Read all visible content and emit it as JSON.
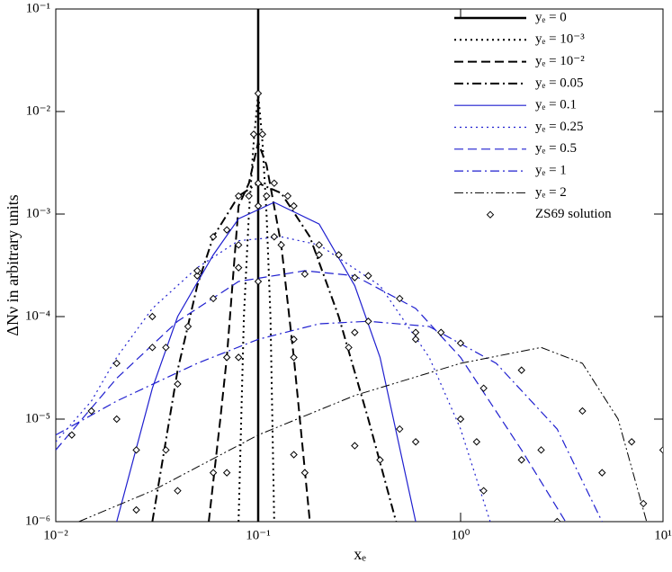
{
  "chart_data": {
    "type": "line",
    "x_label": "xₑ",
    "y_label": "ΔNν  in arbitrary units",
    "xscale": "log",
    "yscale": "log",
    "xlim": [
      0.01,
      10
    ],
    "ylim": [
      1e-06,
      0.1
    ],
    "xticks": [
      {
        "value": 0.01,
        "label": "10⁻²"
      },
      {
        "value": 0.1,
        "label": "10⁻¹"
      },
      {
        "value": 1,
        "label": "10⁰"
      },
      {
        "value": 10,
        "label": "10¹"
      }
    ],
    "yticks": [
      {
        "value": 1e-06,
        "label": "10⁻⁶"
      },
      {
        "value": 1e-05,
        "label": "10⁻⁵"
      },
      {
        "value": 0.0001,
        "label": "10⁻⁴"
      },
      {
        "value": 0.001,
        "label": "10⁻³"
      },
      {
        "value": 0.01,
        "label": "10⁻²"
      },
      {
        "value": 0.1,
        "label": "10⁻¹"
      }
    ],
    "legend": "upper right",
    "series": [
      {
        "name": "yₑ = 0",
        "color": "#000000",
        "style": "solid",
        "width": 2.5,
        "x": [
          0.1,
          0.1
        ],
        "values": [
          1e-06,
          0.1
        ]
      },
      {
        "name": "yₑ = 10⁻³",
        "color": "#000000",
        "style": "dotted",
        "width": 2,
        "x": [
          0.08,
          0.085,
          0.09,
          0.095,
          0.1,
          0.105,
          0.11,
          0.115,
          0.12
        ],
        "values": [
          1e-06,
          0.0001,
          0.001,
          0.005,
          0.015,
          0.005,
          0.001,
          0.0001,
          1e-06
        ]
      },
      {
        "name": "yₑ = 10⁻²",
        "color": "#000000",
        "style": "dashed",
        "width": 2,
        "x": [
          0.057,
          0.065,
          0.07,
          0.08,
          0.09,
          0.1,
          0.11,
          0.13,
          0.15,
          0.18
        ],
        "values": [
          1e-06,
          1e-05,
          4e-05,
          0.0012,
          0.002,
          0.005,
          0.003,
          0.0005,
          4e-05,
          1e-06
        ]
      },
      {
        "name": "yₑ = 0.05",
        "color": "#000000",
        "style": "dashdot",
        "width": 2,
        "x": [
          0.03,
          0.04,
          0.05,
          0.06,
          0.08,
          0.1,
          0.13,
          0.18,
          0.25,
          0.35,
          0.48
        ],
        "values": [
          1e-06,
          3e-05,
          0.0002,
          0.0006,
          0.0015,
          0.002,
          0.0016,
          0.0006,
          0.0001,
          1e-05,
          1e-06
        ]
      },
      {
        "name": "yₑ = 0.1",
        "color": "#1f1fcf",
        "style": "solid",
        "width": 1.2,
        "x": [
          0.02,
          0.03,
          0.04,
          0.06,
          0.08,
          0.12,
          0.2,
          0.3,
          0.4,
          0.6
        ],
        "values": [
          1e-06,
          2e-05,
          0.0001,
          0.0004,
          0.0009,
          0.0013,
          0.0008,
          0.0002,
          4e-05,
          1e-06
        ]
      },
      {
        "name": "yₑ = 0.25",
        "color": "#1f1fcf",
        "style": "dotted",
        "width": 1.2,
        "x": [
          0.01,
          0.015,
          0.02,
          0.03,
          0.05,
          0.08,
          0.13,
          0.2,
          0.4,
          0.7,
          1,
          1.4
        ],
        "values": [
          6e-06,
          1.5e-05,
          4e-05,
          0.00012,
          0.0003,
          0.00055,
          0.0006,
          0.0005,
          0.0002,
          4e-05,
          8e-06,
          1e-06
        ]
      },
      {
        "name": "yₑ = 0.5",
        "color": "#1f1fcf",
        "style": "dashed",
        "width": 1.2,
        "x": [
          0.01,
          0.02,
          0.04,
          0.08,
          0.17,
          0.3,
          0.6,
          1,
          2,
          3.3
        ],
        "values": [
          5e-06,
          2.5e-05,
          9e-05,
          0.00022,
          0.00028,
          0.00025,
          0.00012,
          4e-05,
          5e-06,
          1e-06
        ]
      },
      {
        "name": "yₑ = 1",
        "color": "#1f1fcf",
        "style": "dashdot",
        "width": 1.2,
        "x": [
          0.01,
          0.02,
          0.05,
          0.1,
          0.2,
          0.35,
          0.7,
          1.5,
          3,
          5
        ],
        "values": [
          7e-06,
          1.5e-05,
          3.5e-05,
          6e-05,
          8.5e-05,
          9e-05,
          8e-05,
          3.5e-05,
          8e-06,
          1e-06
        ]
      },
      {
        "name": "yₑ = 2",
        "color": "#000000",
        "style": "dashdotdot",
        "width": 1,
        "x": [
          0.013,
          0.03,
          0.1,
          0.3,
          1,
          2.5,
          4,
          6,
          8.3
        ],
        "values": [
          1e-06,
          2e-06,
          7e-06,
          1.7e-05,
          3.5e-05,
          5e-05,
          3.5e-05,
          1e-05,
          1e-06
        ]
      },
      {
        "name": "ZS69 solution",
        "color": "#000000",
        "marker": "diamond",
        "x": [
          0.095,
          0.1,
          0.105,
          0.09,
          0.11,
          0.06,
          0.07,
          0.08,
          0.12,
          0.13,
          0.15,
          0.17,
          0.035,
          0.045,
          0.06,
          0.08,
          0.1,
          0.14,
          0.2,
          0.28,
          0.4,
          0.025,
          0.035,
          0.05,
          0.07,
          0.1,
          0.15,
          0.25,
          0.35,
          0.5,
          0.012,
          0.02,
          0.03,
          0.05,
          0.08,
          0.12,
          0.2,
          0.35,
          0.6,
          1,
          1.3,
          0.015,
          0.03,
          0.06,
          0.1,
          0.17,
          0.3,
          0.5,
          0.8,
          1.3,
          2,
          3,
          0.02,
          0.04,
          0.08,
          0.15,
          0.3,
          0.6,
          1,
          2,
          4,
          7,
          10,
          0.025,
          0.04,
          0.07,
          0.15,
          0.3,
          0.6,
          1.2,
          2.5,
          5,
          8
        ],
        "values": [
          0.006,
          0.015,
          0.006,
          0.0015,
          0.0015,
          3e-06,
          4e-05,
          0.0003,
          0.002,
          0.0005,
          4e-05,
          3e-06,
          5e-06,
          8e-05,
          0.0006,
          0.0015,
          0.002,
          0.0015,
          0.0004,
          5e-05,
          4e-06,
          5e-06,
          5e-05,
          0.00025,
          0.0007,
          0.0012,
          0.0012,
          0.0004,
          9e-05,
          8e-06,
          7e-06,
          3.5e-05,
          0.0001,
          0.00028,
          0.0005,
          0.0006,
          0.0005,
          0.00025,
          6e-05,
          1e-05,
          2e-06,
          1.2e-05,
          5e-05,
          0.00015,
          0.00022,
          0.00026,
          0.00024,
          0.00015,
          7e-05,
          2e-05,
          4e-06,
          1e-06,
          1e-05,
          2.2e-05,
          4e-05,
          6e-05,
          7e-05,
          7e-05,
          5.5e-05,
          3e-05,
          1.2e-05,
          6e-06,
          5e-06,
          1.3e-06,
          2e-06,
          3e-06,
          4.5e-06,
          5.5e-06,
          6e-06,
          6e-06,
          5e-06,
          3e-06,
          1.5e-06
        ]
      }
    ]
  }
}
